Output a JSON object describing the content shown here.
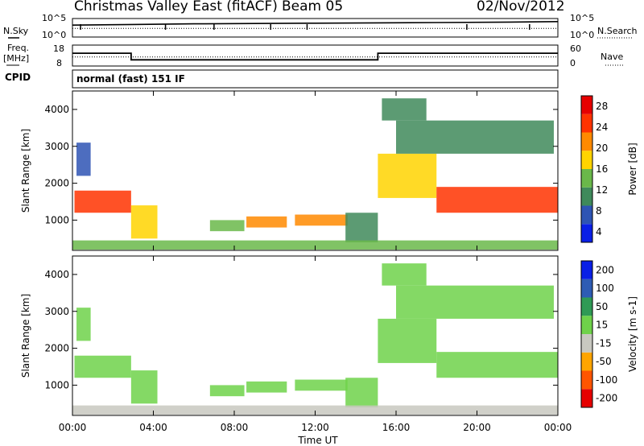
{
  "header": {
    "title": "Christmas Valley East (fitACF)",
    "beam": "Beam 05",
    "date": "02/Nov/2012"
  },
  "status_panel": {
    "nsky_label": "N.Sky",
    "nsky_ticks": [
      "10^5",
      "10^0"
    ],
    "nsearch_label": "N.Search",
    "nsearch_ticks": [
      "10^5",
      "10^0"
    ],
    "freq_label_1": "Freq.",
    "freq_label_2": "[MHz]",
    "freq_ticks": [
      "18",
      "8"
    ],
    "nave_label": "Nave",
    "nave_ticks": [
      "60",
      "0"
    ],
    "cpid_label": "CPID",
    "control_program": "normal (fast) 151 IF"
  },
  "chart_data": [
    {
      "type": "line",
      "title": "N.Sky / N.Search",
      "x_hours": [
        0,
        3,
        6,
        9,
        12,
        15,
        18,
        21,
        24
      ],
      "y_nsky_log10": [
        3.2,
        3.4,
        3.6,
        3.7,
        3.8,
        3.9,
        4.0,
        4.1,
        4.3
      ],
      "y_nsearch_log10": [
        2.2,
        2.2,
        2.2,
        2.2,
        2.2,
        2.2,
        2.2,
        2.2,
        2.2
      ],
      "ylim": [
        "10^0",
        "10^5"
      ]
    },
    {
      "type": "line",
      "x_hours": [
        0,
        2.9,
        2.9,
        15.1,
        15.1,
        24
      ],
      "freq_mhz": [
        14.3,
        14.3,
        10.6,
        10.6,
        14.3,
        14.3
      ],
      "nave": [
        25,
        25,
        25,
        25,
        25,
        25
      ],
      "ylim_freq": [
        8,
        18
      ],
      "ylim_nave": [
        0,
        60
      ]
    },
    {
      "type": "heatmap",
      "quantity": "Power",
      "ylabel": "Slant Range [km]",
      "xlabel": "Time UT",
      "x_ticks": [
        "00:00",
        "04:00",
        "08:00",
        "12:00",
        "16:00",
        "20:00",
        "00:00"
      ],
      "y_ticks": [
        "1000",
        "2000",
        "3000",
        "4000"
      ],
      "xlim_hours": [
        0,
        24
      ],
      "ylim_km": [
        180,
        4500
      ],
      "colorbar_label": "Power [dB]",
      "colorbar_ticks": [
        "28",
        "24",
        "20",
        "16",
        "12",
        "8",
        "4"
      ],
      "colorbar_range": [
        0,
        30
      ],
      "colors": [
        "#0a1fe6",
        "#2e54b4",
        "#3f8a5b",
        "#6ab84a",
        "#ffd400",
        "#ff8a00",
        "#ff3300",
        "#e60000"
      ],
      "regions": [
        {
          "t0": 0.1,
          "t1": 2.9,
          "r0": 1200,
          "r1": 1800,
          "value": 26
        },
        {
          "t0": 2.9,
          "t1": 4.2,
          "r0": 500,
          "r1": 1400,
          "value": 18
        },
        {
          "t0": 0.2,
          "t1": 0.9,
          "r0": 2200,
          "r1": 3100,
          "value": 6
        },
        {
          "t0": 6.8,
          "t1": 8.5,
          "r0": 700,
          "r1": 1000,
          "value": 14
        },
        {
          "t0": 8.6,
          "t1": 10.6,
          "r0": 800,
          "r1": 1100,
          "value": 22
        },
        {
          "t0": 11.0,
          "t1": 13.6,
          "r0": 850,
          "r1": 1150,
          "value": 22
        },
        {
          "t0": 13.5,
          "t1": 15.1,
          "r0": 400,
          "r1": 1200,
          "value": 10
        },
        {
          "t0": 0.0,
          "t1": 24.0,
          "r0": 200,
          "r1": 450,
          "value": 12
        },
        {
          "t0": 15.1,
          "t1": 18.0,
          "r0": 1600,
          "r1": 2800,
          "value": 16
        },
        {
          "t0": 18.0,
          "t1": 24.0,
          "r0": 1200,
          "r1": 1900,
          "value": 24
        },
        {
          "t0": 16.0,
          "t1": 23.8,
          "r0": 2800,
          "r1": 3700,
          "value": 10
        },
        {
          "t0": 15.3,
          "t1": 17.5,
          "r0": 3700,
          "r1": 4300,
          "value": 8
        }
      ]
    },
    {
      "type": "heatmap",
      "quantity": "Velocity",
      "ylabel": "Slant Range [km]",
      "xlabel": "Time UT",
      "x_ticks": [
        "00:00",
        "04:00",
        "08:00",
        "12:00",
        "16:00",
        "20:00",
        "00:00"
      ],
      "y_ticks": [
        "1000",
        "2000",
        "3000",
        "4000"
      ],
      "xlim_hours": [
        0,
        24
      ],
      "ylim_km": [
        180,
        4500
      ],
      "colorbar_label": "Velocity [m s-1]",
      "colorbar_ticks": [
        "200",
        "100",
        "50",
        "15",
        "-15",
        "-50",
        "-100",
        "-200"
      ],
      "colorbar_range": [
        -250,
        250
      ],
      "colors": [
        "#e60000",
        "#ff5500",
        "#ffa500",
        "#c8c8c0",
        "#6fd24a",
        "#2f9a55",
        "#2e5cb4",
        "#0a1fe6"
      ],
      "regions": [
        {
          "t0": 0.1,
          "t1": 2.9,
          "r0": 1200,
          "r1": 1800,
          "value": 40
        },
        {
          "t0": 2.9,
          "t1": 4.2,
          "r0": 500,
          "r1": 1400,
          "value": 20
        },
        {
          "t0": 0.2,
          "t1": 0.9,
          "r0": 2200,
          "r1": 3100,
          "value": 0
        },
        {
          "t0": 6.8,
          "t1": 8.5,
          "r0": 700,
          "r1": 1000,
          "value": 30
        },
        {
          "t0": 8.6,
          "t1": 10.6,
          "r0": 800,
          "r1": 1100,
          "value": 40
        },
        {
          "t0": 11.0,
          "t1": 13.6,
          "r0": 850,
          "r1": 1150,
          "value": 10
        },
        {
          "t0": 13.5,
          "t1": 15.1,
          "r0": 400,
          "r1": 1200,
          "value": 0
        },
        {
          "t0": 0.0,
          "t1": 24.0,
          "r0": 200,
          "r1": 450,
          "value": -40
        },
        {
          "t0": 15.1,
          "t1": 18.0,
          "r0": 1600,
          "r1": 2800,
          "value": 0
        },
        {
          "t0": 18.0,
          "t1": 24.0,
          "r0": 1200,
          "r1": 1900,
          "value": 0
        },
        {
          "t0": 16.0,
          "t1": 23.8,
          "r0": 2800,
          "r1": 3700,
          "value": 0
        },
        {
          "t0": 15.3,
          "t1": 17.5,
          "r0": 3700,
          "r1": 4300,
          "value": 5
        }
      ]
    }
  ]
}
